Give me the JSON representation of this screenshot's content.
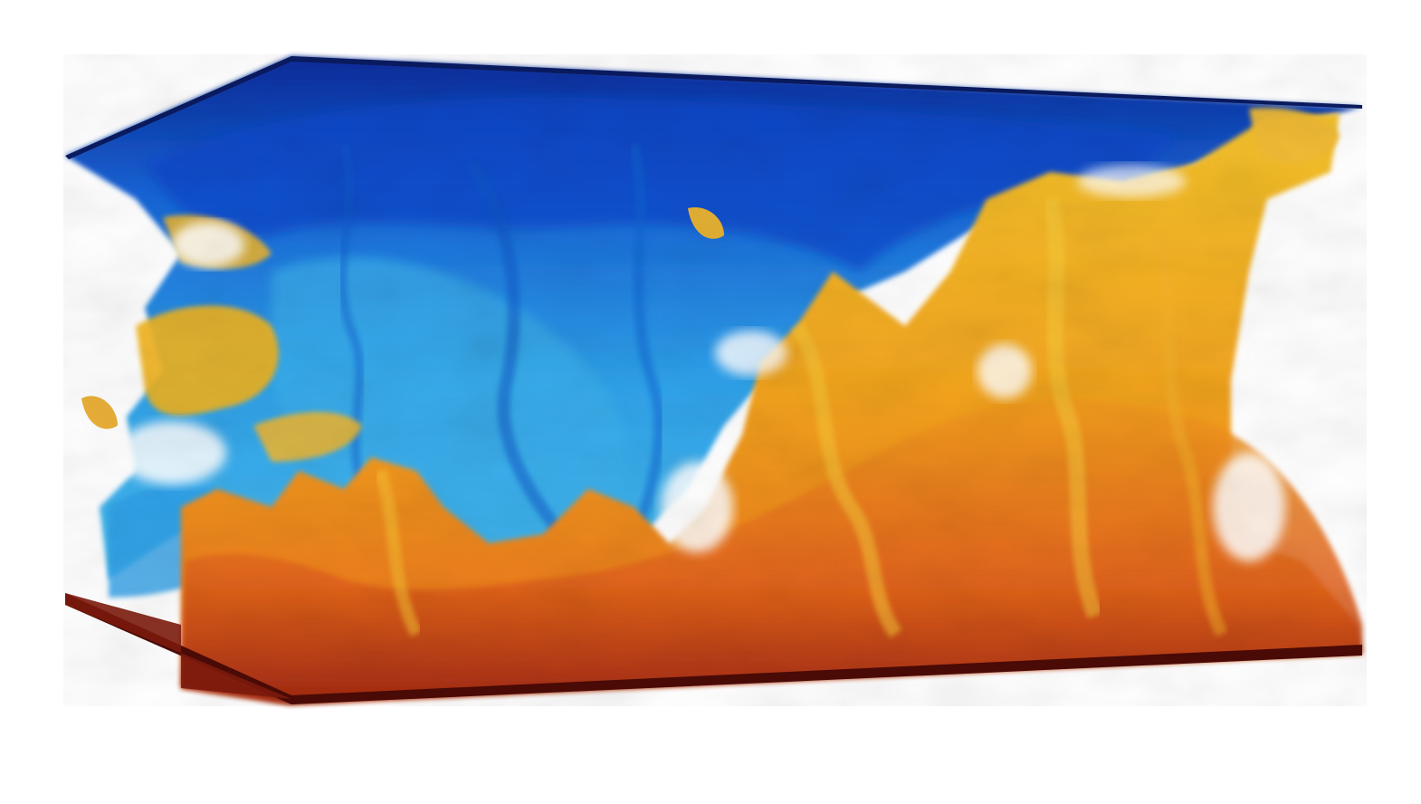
{
  "scene": {
    "subject": "volume-rendering-convection-cell",
    "background_color": "#ffffff",
    "colors": {
      "top_plate": "#0a1f6b",
      "cold_deep": "#0b3fc4",
      "cold_mid": "#1f7fe0",
      "cold_light": "#3fb3ee",
      "hot_light": "#f5c52a",
      "hot_mid": "#f0961a",
      "hot_deep": "#d8541a",
      "bottom_plate": "#5a0d08"
    },
    "icons": [
      "top-plate",
      "bottom-plate",
      "cold-plume",
      "hot-plume"
    ]
  }
}
